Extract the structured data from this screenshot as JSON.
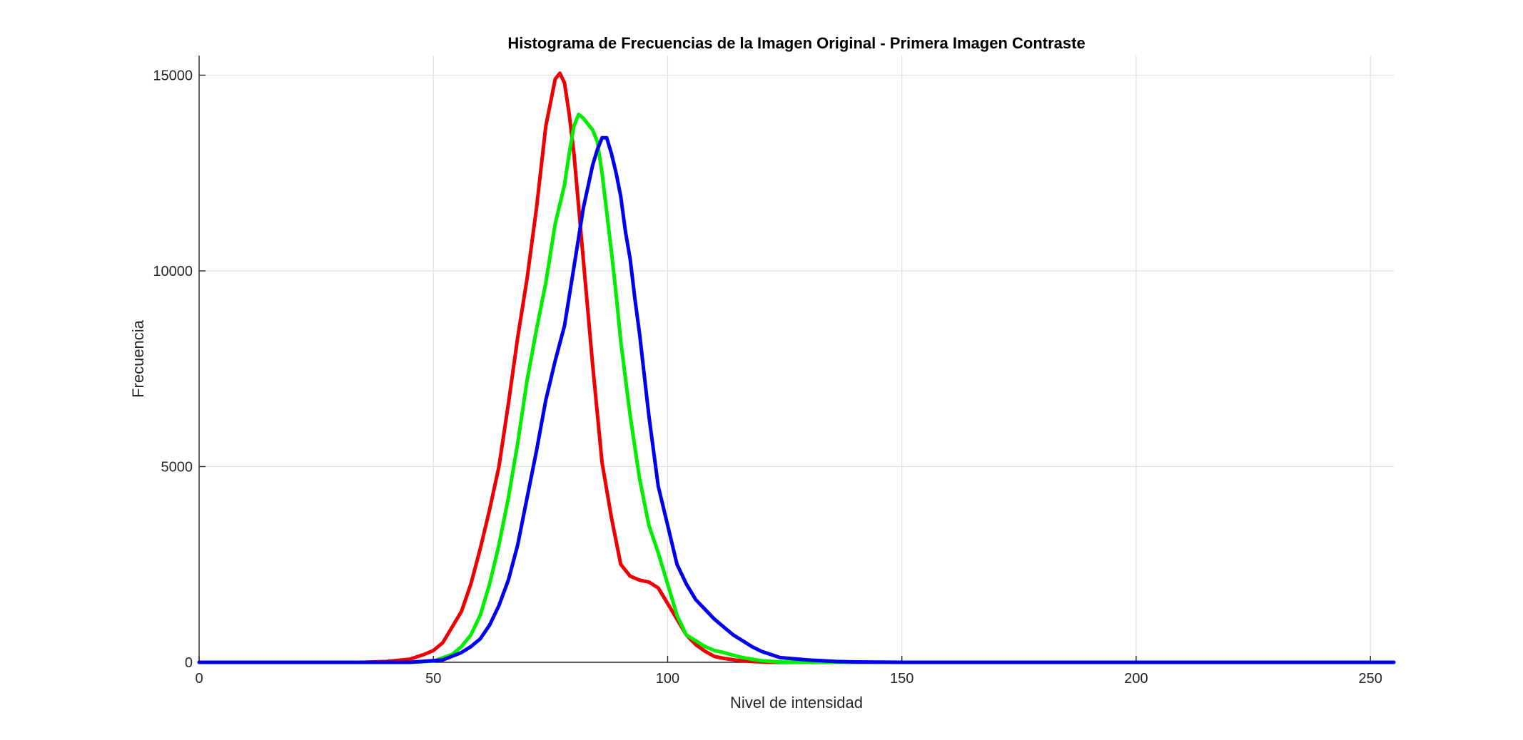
{
  "chart_data": {
    "type": "line",
    "title": "Histograma de Frecuencias de la Imagen Original - Primera Imagen Contraste",
    "xlabel": "Nivel de intensidad",
    "ylabel": "Frecuencia",
    "xlim": [
      0,
      255
    ],
    "ylim": [
      0,
      15500
    ],
    "xticks": [
      0,
      50,
      100,
      150,
      200,
      250
    ],
    "yticks": [
      0,
      5000,
      10000,
      15000
    ],
    "xtick_labels": [
      "0",
      "50",
      "100",
      "150",
      "200",
      "250"
    ],
    "ytick_labels": [
      "0",
      "5000",
      "10000",
      "15000"
    ],
    "grid": true,
    "legend": "none",
    "series": [
      {
        "color": "#ee0000",
        "x": [
          0,
          35,
          40,
          45,
          48,
          50,
          52,
          54,
          56,
          58,
          60,
          62,
          64,
          66,
          68,
          70,
          72,
          74,
          75,
          76,
          77,
          78,
          79,
          80,
          82,
          84,
          86,
          88,
          90,
          92,
          94,
          96,
          98,
          100,
          102,
          104,
          106,
          108,
          110,
          112,
          115,
          118,
          122,
          126,
          255
        ],
        "y": [
          0,
          0,
          20,
          80,
          200,
          300,
          500,
          900,
          1300,
          2000,
          2900,
          3900,
          5000,
          6600,
          8300,
          9800,
          11600,
          13700,
          14300,
          14900,
          15050,
          14800,
          14000,
          13000,
          10300,
          7600,
          5100,
          3700,
          2500,
          2200,
          2100,
          2050,
          1900,
          1500,
          1100,
          700,
          450,
          280,
          150,
          100,
          50,
          20,
          0,
          0,
          0
        ]
      },
      {
        "color": "#00ee00",
        "x": [
          0,
          45,
          50,
          54,
          56,
          58,
          60,
          62,
          64,
          66,
          68,
          70,
          72,
          74,
          76,
          78,
          79,
          80,
          81,
          82,
          83,
          84,
          85,
          86,
          87,
          88,
          89,
          90,
          92,
          94,
          96,
          98,
          100,
          102,
          104,
          106,
          108,
          110,
          112,
          114,
          116,
          118,
          120,
          124,
          130,
          255
        ],
        "y": [
          0,
          0,
          30,
          200,
          400,
          700,
          1200,
          2000,
          3000,
          4200,
          5600,
          7200,
          8500,
          9700,
          11200,
          12200,
          13000,
          13700,
          14000,
          13900,
          13750,
          13600,
          13300,
          12500,
          11500,
          10500,
          9400,
          8200,
          6300,
          4700,
          3500,
          2800,
          2000,
          1200,
          700,
          550,
          400,
          300,
          250,
          180,
          120,
          80,
          40,
          10,
          0,
          0
        ]
      },
      {
        "color": "#0000ee",
        "x": [
          0,
          45,
          52,
          56,
          58,
          60,
          62,
          64,
          66,
          68,
          70,
          72,
          74,
          76,
          78,
          80,
          82,
          84,
          85,
          86,
          87,
          88,
          89,
          90,
          91,
          92,
          93,
          94,
          96,
          98,
          100,
          102,
          104,
          106,
          108,
          110,
          112,
          114,
          116,
          118,
          120,
          124,
          130,
          136,
          140,
          150,
          255
        ],
        "y": [
          0,
          0,
          60,
          250,
          400,
          600,
          950,
          1450,
          2100,
          3000,
          4200,
          5400,
          6700,
          7700,
          8600,
          10100,
          11600,
          12700,
          13100,
          13400,
          13400,
          13000,
          12500,
          11900,
          11000,
          10300,
          9300,
          8400,
          6300,
          4500,
          3500,
          2500,
          2000,
          1600,
          1350,
          1100,
          900,
          700,
          550,
          400,
          280,
          120,
          60,
          20,
          10,
          0,
          0
        ]
      }
    ]
  }
}
